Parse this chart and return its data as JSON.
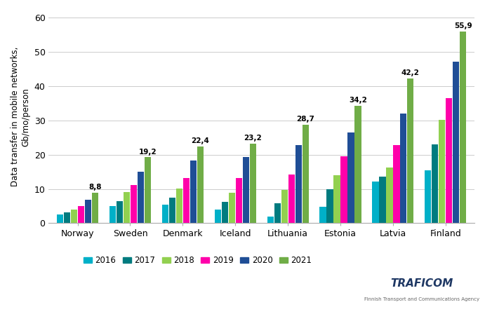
{
  "categories": [
    "Norway",
    "Sweden",
    "Denmark",
    "Iceland",
    "Lithuania",
    "Estonia",
    "Latvia",
    "Finland"
  ],
  "years": [
    "2016",
    "2017",
    "2018",
    "2019",
    "2020",
    "2021"
  ],
  "bar_colors": [
    "#00B0C8",
    "#007B7F",
    "#92D050",
    "#FF00AA",
    "#1F4E96",
    "#70AD47"
  ],
  "values": {
    "Norway": [
      2.5,
      3.2,
      4.0,
      5.0,
      6.8,
      8.8
    ],
    "Sweden": [
      5.0,
      6.5,
      9.0,
      11.2,
      15.0,
      19.2
    ],
    "Denmark": [
      5.5,
      7.5,
      10.2,
      13.2,
      18.2,
      22.4
    ],
    "Iceland": [
      4.0,
      6.2,
      8.8,
      13.2,
      19.2,
      23.2
    ],
    "Lithuania": [
      2.0,
      5.8,
      9.7,
      14.2,
      22.8,
      28.7
    ],
    "Estonia": [
      4.8,
      10.0,
      14.0,
      19.5,
      26.5,
      34.2
    ],
    "Latvia": [
      12.2,
      13.5,
      16.2,
      22.8,
      32.0,
      42.2
    ],
    "Finland": [
      15.5,
      23.0,
      30.2,
      36.5,
      47.0,
      55.9
    ]
  },
  "top_labels": {
    "Norway": 8.8,
    "Sweden": 19.2,
    "Denmark": 22.4,
    "Iceland": 23.2,
    "Lithuania": 28.7,
    "Estonia": 34.2,
    "Latvia": 42.2,
    "Finland": 55.9
  },
  "ylabel": "Data transfer in mobile networks,\nGb/mo/person",
  "ylim": [
    0,
    62
  ],
  "yticks": [
    0,
    10,
    20,
    30,
    40,
    50,
    60
  ],
  "background_color": "#FFFFFF",
  "grid_color": "#CCCCCC",
  "traficom_color": "#1F3864",
  "traficom_sub_color": "#666666"
}
